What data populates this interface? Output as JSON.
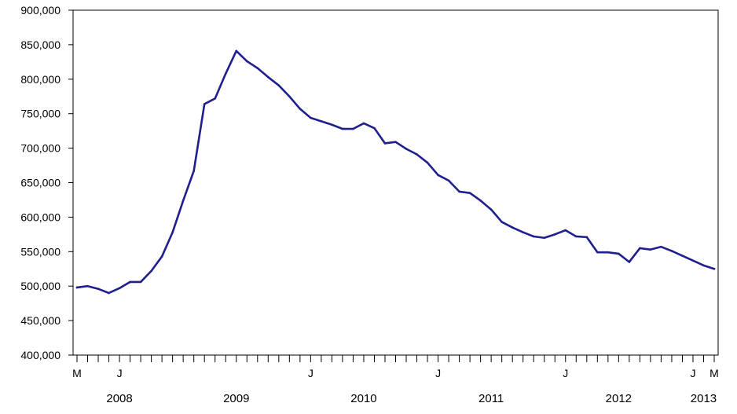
{
  "chart_data": {
    "type": "line",
    "title": "",
    "xlabel": "",
    "ylabel": "",
    "ylim": [
      400000,
      900000
    ],
    "yticks": [
      {
        "value": 900000,
        "label": "900,000"
      },
      {
        "value": 850000,
        "label": "850,000"
      },
      {
        "value": 800000,
        "label": "800,000"
      },
      {
        "value": 750000,
        "label": "750,000"
      },
      {
        "value": 700000,
        "label": "700,000"
      },
      {
        "value": 650000,
        "label": "650,000"
      },
      {
        "value": 600000,
        "label": "600,000"
      },
      {
        "value": 550000,
        "label": "550,000"
      },
      {
        "value": 500000,
        "label": "500,000"
      },
      {
        "value": 450000,
        "label": "450,000"
      },
      {
        "value": 400000,
        "label": "400,000"
      }
    ],
    "x_start": "2008-03",
    "x_end": "2013-03",
    "month_labels": [
      {
        "month": "2008-03",
        "label": "M"
      },
      {
        "month": "2008-07",
        "label": "J"
      },
      {
        "month": "2010-01",
        "label": "J"
      },
      {
        "month": "2011-01",
        "label": "J"
      },
      {
        "month": "2012-01",
        "label": "J"
      },
      {
        "month": "2013-01",
        "label": "J"
      },
      {
        "month": "2013-03",
        "label": "M"
      }
    ],
    "year_labels": [
      {
        "center": "2008-07",
        "label": "2008"
      },
      {
        "center": "2009-06",
        "label": "2009"
      },
      {
        "center": "2010-06",
        "label": "2010"
      },
      {
        "center": "2011-06",
        "label": "2011"
      },
      {
        "center": "2012-06",
        "label": "2012"
      },
      {
        "center": "2013-02",
        "label": "2013"
      }
    ],
    "grid": false,
    "series": [
      {
        "color": "#1f1f8f",
        "x": [
          "2008-03",
          "2008-04",
          "2008-05",
          "2008-06",
          "2008-07",
          "2008-08",
          "2008-09",
          "2008-10",
          "2008-11",
          "2008-12",
          "2009-01",
          "2009-02",
          "2009-03",
          "2009-04",
          "2009-05",
          "2009-06",
          "2009-07",
          "2009-08",
          "2009-09",
          "2009-10",
          "2009-11",
          "2009-12",
          "2010-01",
          "2010-02",
          "2010-03",
          "2010-04",
          "2010-05",
          "2010-06",
          "2010-07",
          "2010-08",
          "2010-09",
          "2010-10",
          "2010-11",
          "2010-12",
          "2011-01",
          "2011-02",
          "2011-03",
          "2011-04",
          "2011-05",
          "2011-06",
          "2011-07",
          "2011-08",
          "2011-09",
          "2011-10",
          "2011-11",
          "2011-12",
          "2012-01",
          "2012-02",
          "2012-03",
          "2012-04",
          "2012-05",
          "2012-06",
          "2012-07",
          "2012-08",
          "2012-09",
          "2012-10",
          "2012-11",
          "2012-12",
          "2013-01",
          "2013-02",
          "2013-03"
        ],
        "values": [
          498000,
          500000,
          496000,
          490000,
          497000,
          506000,
          506000,
          522000,
          543000,
          578000,
          624000,
          667000,
          764000,
          772000,
          808000,
          841000,
          826000,
          816000,
          803000,
          791000,
          775000,
          757000,
          744000,
          739000,
          734000,
          728000,
          728000,
          736000,
          729000,
          707000,
          709000,
          699000,
          691000,
          679000,
          661000,
          653000,
          637000,
          635000,
          624000,
          611000,
          593000,
          585000,
          578000,
          572000,
          570000,
          575000,
          581000,
          572000,
          571000,
          549000,
          549000,
          547000,
          535000,
          555000,
          553000,
          557000,
          551000,
          544000,
          537000,
          530000,
          525000
        ]
      }
    ]
  }
}
